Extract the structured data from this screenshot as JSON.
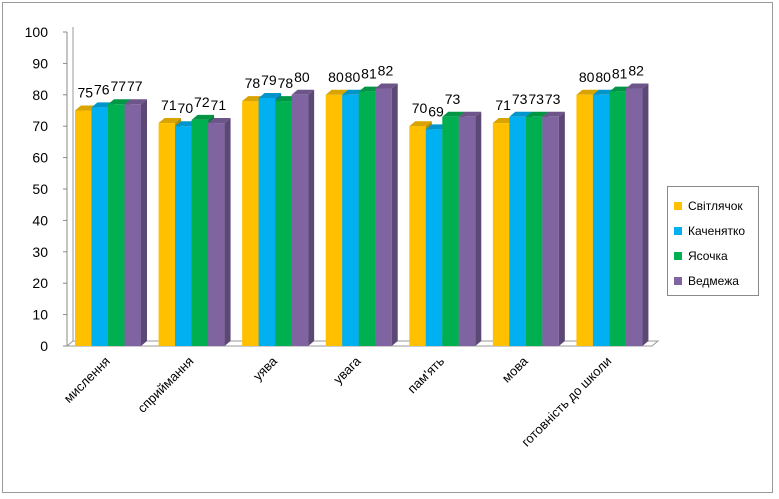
{
  "chart_data": {
    "type": "bar",
    "categories": [
      "мислення",
      "сприймання",
      "уява",
      "увага",
      "пам'ять",
      "мова",
      "готовність до школи"
    ],
    "series": [
      {
        "name": "Світлячок",
        "color": "#FFC000",
        "values": [
          75,
          71,
          78,
          80,
          70,
          71,
          80
        ]
      },
      {
        "name": "Каченятко",
        "color": "#00B0F0",
        "values": [
          76,
          70,
          79,
          80,
          69,
          73,
          80
        ]
      },
      {
        "name": "Ясочка",
        "color": "#00B050",
        "values": [
          77,
          72,
          78,
          81,
          73,
          73,
          81
        ]
      },
      {
        "name": "Ведмежа",
        "color": "#8064A2",
        "values": [
          77,
          71,
          80,
          82,
          73,
          73,
          82
        ]
      }
    ],
    "data_labels": [
      [
        "75",
        "76",
        "77",
        "77"
      ],
      [
        "71",
        "70",
        "72",
        "71"
      ],
      [
        "78",
        "79",
        "78",
        "80"
      ],
      [
        "80",
        "80",
        "81",
        "82"
      ],
      [
        "70",
        "69",
        "73",
        "73"
      ],
      [
        "71",
        "73",
        "73",
        "73"
      ],
      [
        "80",
        "80",
        "81",
        "82"
      ]
    ],
    "label_visible": [
      [
        true,
        true,
        true,
        true
      ],
      [
        true,
        true,
        true,
        true
      ],
      [
        true,
        true,
        true,
        true
      ],
      [
        true,
        true,
        true,
        true
      ],
      [
        true,
        true,
        true,
        false
      ],
      [
        true,
        true,
        true,
        true
      ],
      [
        true,
        true,
        true,
        true
      ]
    ],
    "yticks": [
      "0",
      "10",
      "20",
      "30",
      "40",
      "50",
      "60",
      "70",
      "80",
      "90",
      "100"
    ],
    "ylim": [
      0,
      100
    ],
    "title": "",
    "xlabel": "",
    "ylabel": "",
    "style": "3d-clustered-column",
    "grid": false,
    "legend_position": "right"
  }
}
